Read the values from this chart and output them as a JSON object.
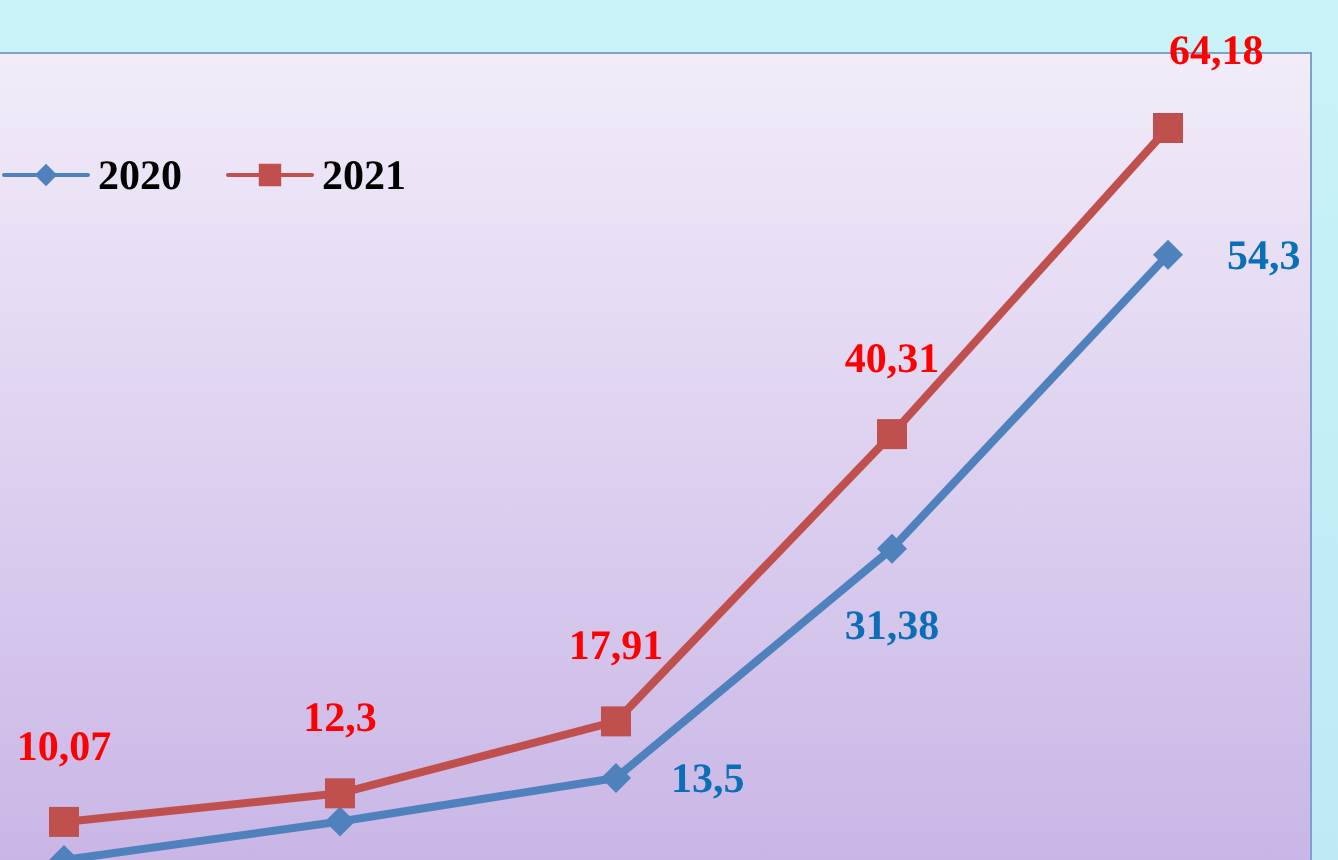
{
  "chart_data": {
    "type": "line",
    "categories": [
      null,
      null,
      null,
      null,
      null
    ],
    "grid": false,
    "legend": "top left",
    "series": [
      {
        "name": "2020",
        "color": "#4f81bd",
        "marker": "diamond",
        "values": [
          7.1,
          10.1,
          13.5,
          31.38,
          54.3
        ],
        "value_labels": [
          null,
          null,
          "13,5",
          "31,38",
          "54,3"
        ]
      },
      {
        "name": "2021",
        "color": "#c0504d",
        "marker": "square",
        "values": [
          10.07,
          12.3,
          17.91,
          40.31,
          64.18
        ],
        "value_labels": [
          "10,07",
          "12,3",
          "17,91",
          "40,31",
          "64,18"
        ]
      }
    ]
  }
}
